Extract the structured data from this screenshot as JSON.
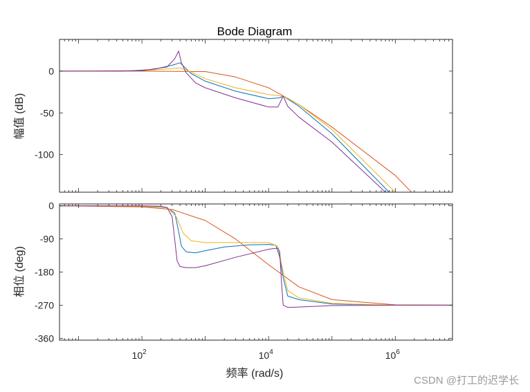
{
  "watermark": "CSDN @打工的迟学长",
  "chart_data": [
    {
      "type": "line",
      "panel": "magnitude",
      "title": "Bode Diagram",
      "xlabel": "频率  (rad/s)",
      "ylabel": "幅值 (dB)",
      "xscale": "log",
      "xlim": [
        5,
        8000000
      ],
      "ylim": [
        -145,
        38
      ],
      "yticks": [
        0,
        -50,
        -100
      ],
      "ytick_labels": [
        "0",
        "-50",
        "-100"
      ],
      "xtick_labels": [
        {
          "base": "10",
          "exp": "2"
        },
        {
          "base": "10",
          "exp": "4"
        },
        {
          "base": "10",
          "exp": "6"
        }
      ],
      "grid": false,
      "series": [
        {
          "color": "#0072BD",
          "x": [
            5,
            50,
            150,
            300,
            400,
            600,
            1000,
            3000,
            10000,
            15000,
            17000,
            30000,
            100000,
            800000
          ],
          "y": [
            0,
            0,
            2,
            7,
            10,
            -3,
            -12,
            -24,
            -33,
            -32,
            -30,
            -42,
            -75,
            -145
          ]
        },
        {
          "color": "#D95319",
          "x": [
            5,
            100,
            1000,
            3000,
            10000,
            30000,
            100000,
            1000000,
            1800000
          ],
          "y": [
            0,
            0,
            -0.5,
            -7,
            -20,
            -40,
            -67,
            -125,
            -145
          ]
        },
        {
          "color": "#EDB120",
          "x": [
            5,
            100,
            300,
            400,
            600,
            1000,
            3000,
            10000,
            17000,
            30000,
            100000,
            1000000
          ],
          "y": [
            0,
            0.5,
            3,
            4,
            -1,
            -9,
            -20,
            -28,
            -30,
            -40,
            -70,
            -145
          ]
        },
        {
          "color": "#7E2F8E",
          "x": [
            5,
            100,
            250,
            330,
            380,
            420,
            500,
            700,
            1000,
            3000,
            10000,
            14000,
            17000,
            20000,
            30000,
            100000,
            700000
          ],
          "y": [
            0,
            0.5,
            5,
            15,
            24,
            10,
            -2,
            -14,
            -20,
            -32,
            -43,
            -43,
            -30,
            -42,
            -55,
            -85,
            -145
          ]
        }
      ]
    },
    {
      "type": "line",
      "panel": "phase",
      "xlabel": "频率  (rad/s)",
      "ylabel": "相位 (deg)",
      "xscale": "log",
      "xlim": [
        5,
        8000000
      ],
      "ylim": [
        -365,
        5
      ],
      "yticks": [
        0,
        -90,
        -180,
        -270,
        -360
      ],
      "ytick_labels": [
        "0",
        "-90",
        "-180",
        "-270",
        "-360"
      ],
      "xtick_labels": [
        {
          "base": "10",
          "exp": "2"
        },
        {
          "base": "10",
          "exp": "4"
        },
        {
          "base": "10",
          "exp": "6"
        }
      ],
      "grid": false,
      "series": [
        {
          "color": "#0072BD",
          "x": [
            5,
            100,
            250,
            330,
            380,
            420,
            500,
            700,
            1000,
            2000,
            5000,
            10000,
            13000,
            15000,
            17000,
            20000,
            30000,
            100000,
            1000000,
            8000000
          ],
          "y": [
            0,
            -1,
            -5,
            -20,
            -70,
            -110,
            -125,
            -128,
            -122,
            -112,
            -106,
            -105,
            -107,
            -140,
            -195,
            -245,
            -255,
            -267,
            -270,
            -270
          ]
        },
        {
          "color": "#D95319",
          "x": [
            5,
            100,
            300,
            1000,
            3000,
            10000,
            30000,
            100000,
            1000000,
            8000000
          ],
          "y": [
            0,
            -3,
            -10,
            -40,
            -90,
            -160,
            -220,
            -255,
            -269,
            -270
          ]
        },
        {
          "color": "#EDB120",
          "x": [
            5,
            100,
            250,
            350,
            450,
            600,
            1000,
            3000,
            10000,
            14000,
            17000,
            20000,
            30000,
            100000,
            1000000,
            8000000
          ],
          "y": [
            0,
            -1,
            -4,
            -30,
            -75,
            -95,
            -100,
            -100,
            -100,
            -110,
            -180,
            -230,
            -250,
            -265,
            -270,
            -270
          ]
        },
        {
          "color": "#7E2F8E",
          "x": [
            5,
            100,
            200,
            250,
            300,
            360,
            400,
            500,
            700,
            1000,
            3000,
            10000,
            14000,
            15000,
            16000,
            17000,
            20000,
            30000,
            100000,
            1000000,
            8000000
          ],
          "y": [
            0,
            0,
            -1,
            -5,
            -30,
            -150,
            -165,
            -168,
            -168,
            -163,
            -140,
            -118,
            -115,
            -125,
            -210,
            -270,
            -276,
            -275,
            -271,
            -270,
            -270
          ]
        }
      ]
    }
  ]
}
